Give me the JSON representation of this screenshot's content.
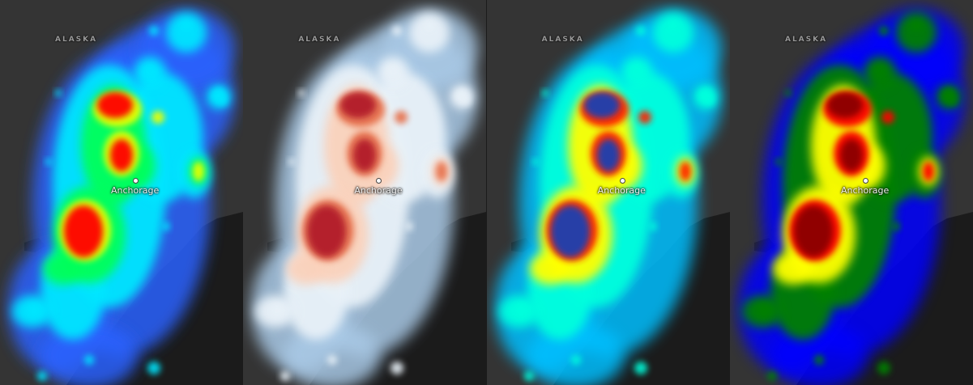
{
  "map": {
    "region_label": "ALASKA",
    "city_label": "Anchorage",
    "colors": {
      "land": "#343434",
      "water": "#1b1b1b"
    }
  },
  "panels": [
    {
      "id": "heatmap-jet",
      "gradient": [
        "#2c62ff",
        "#00e6ff",
        "#00ff5a",
        "#e9ff00",
        "#ff0000"
      ]
    },
    {
      "id": "heatmap-reds",
      "gradient": [
        "#a9c9e6",
        "#e8f1f8",
        "#fad2bc",
        "#e6734f",
        "#b21e2a"
      ]
    },
    {
      "id": "heatmap-inverted",
      "gradient": [
        "#00bfff",
        "#00ffdd",
        "#ffff00",
        "#ff2000",
        "#1b3fb0"
      ]
    },
    {
      "id": "heatmap-stepped",
      "gradient": [
        "#0000ff",
        "#008000",
        "#ffff00",
        "#ff0000",
        "#8b0000"
      ]
    }
  ]
}
